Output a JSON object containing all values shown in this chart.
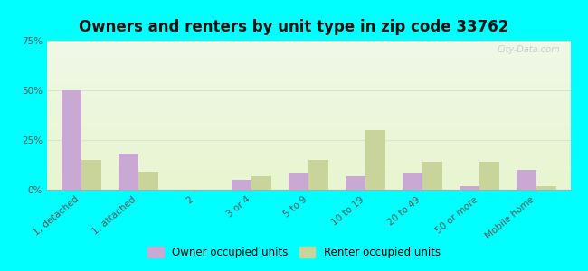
{
  "title": "Owners and renters by unit type in zip code 33762",
  "categories": [
    "1, detached",
    "1, attached",
    "2",
    "3 or 4",
    "5 to 9",
    "10 to 19",
    "20 to 49",
    "50 or more",
    "Mobile home"
  ],
  "owner_values": [
    50,
    18,
    0,
    5,
    8,
    7,
    8,
    2,
    10
  ],
  "renter_values": [
    15,
    9,
    0,
    7,
    15,
    30,
    14,
    14,
    2
  ],
  "owner_color": "#c9a8d4",
  "renter_color": "#c8d49a",
  "owner_label": "Owner occupied units",
  "renter_label": "Renter occupied units",
  "ylim": [
    0,
    75
  ],
  "yticks": [
    0,
    25,
    50,
    75
  ],
  "ytick_labels": [
    "0%",
    "25%",
    "50%",
    "75%"
  ],
  "background_color": "#00ffff",
  "grid_color": "#d8e8c0",
  "bar_width": 0.35,
  "title_fontsize": 12,
  "watermark": "City-Data.com"
}
